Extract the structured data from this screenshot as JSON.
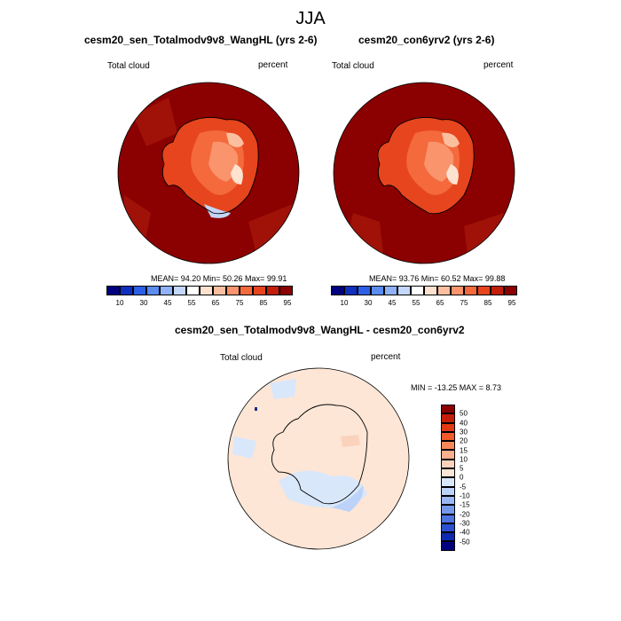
{
  "figure": {
    "title": "JJA"
  },
  "panels": {
    "left": {
      "title": "cesm20_sen_Totalmodv9v8_WangHL (yrs 2-6)",
      "variable": "Total cloud",
      "units": "percent",
      "stats": "MEAN=  94.20  Min=  50.26  Max=  99.91"
    },
    "right": {
      "title": "cesm20_con6yrv2 (yrs 2-6)",
      "variable": "Total cloud",
      "units": "percent",
      "stats": "MEAN=  93.76  Min=  60.52  Max=  99.88"
    },
    "diff": {
      "title": "cesm20_sen_Totalmodv9v8_WangHL - cesm20_con6yrv2",
      "variable": "Total cloud",
      "units": "percent",
      "stats": "MIN = -13.25 MAX =   8.73"
    }
  },
  "colorbar_abs": {
    "colors": [
      "#00007f",
      "#0f2fbf",
      "#2c5fe5",
      "#5b8cf0",
      "#8fb2f6",
      "#c3d7fa",
      "#ffffff",
      "#fde2cf",
      "#fbbf9f",
      "#f9946c",
      "#f46a3c",
      "#e6451d",
      "#c21e0a",
      "#8b0000"
    ],
    "labels": [
      "10",
      "30",
      "45",
      "55",
      "65",
      "75",
      "85",
      "95"
    ]
  },
  "colorbar_diff": {
    "colors": [
      "#8b0000",
      "#c21e0a",
      "#e23a12",
      "#f25a2a",
      "#f7885a",
      "#f9b08c",
      "#fbd3bc",
      "#fde6d6",
      "#d9e7fb",
      "#bcd2f8",
      "#9ab7f2",
      "#7598eb",
      "#4e72e0",
      "#2a4fd0",
      "#0f28b0",
      "#00007f"
    ],
    "labels": [
      "50",
      "40",
      "30",
      "20",
      "15",
      "10",
      "5",
      "0",
      "-5",
      "-10",
      "-15",
      "-20",
      "-30",
      "-40",
      "-50"
    ]
  }
}
